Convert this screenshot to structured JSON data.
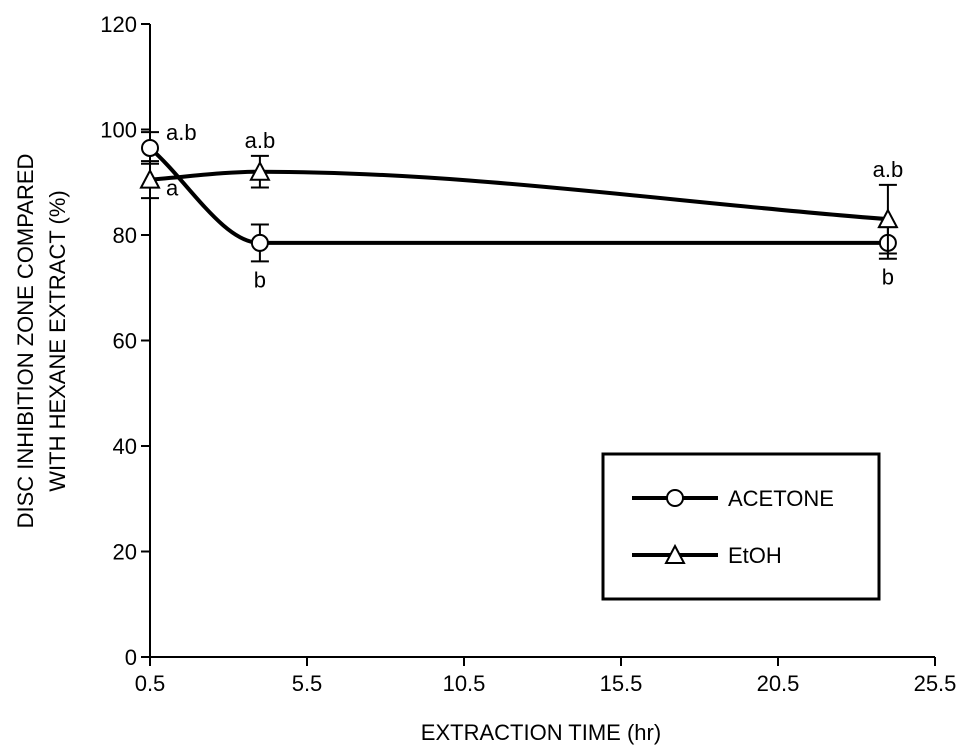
{
  "chart_data": {
    "type": "line",
    "xlabel": "EXTRACTION TIME (hr)",
    "ylabel_lines": [
      "DISC INHIBITION ZONE COMPARED",
      "WITH HEXANE EXTRACT (%)"
    ],
    "xlim": [
      0.5,
      25.5
    ],
    "ylim": [
      0,
      120
    ],
    "xticks": [
      0.5,
      5.5,
      10.5,
      15.5,
      20.5,
      25.5
    ],
    "xtick_labels": [
      "0.5",
      "5.5",
      "10.5",
      "15.5",
      "20.5",
      "25.5"
    ],
    "yticks": [
      0,
      20,
      40,
      60,
      80,
      100,
      120
    ],
    "ytick_labels": [
      "0",
      "20",
      "40",
      "60",
      "80",
      "100",
      "120"
    ],
    "grid": false,
    "legend_position": "bottom-right",
    "series": [
      {
        "name": "ACETONE",
        "marker": "circle",
        "x": [
          0.5,
          4,
          24
        ],
        "y": [
          96.5,
          78.5,
          78.5
        ],
        "err": [
          3,
          3.5,
          3
        ],
        "labels": [
          "a.b",
          "b",
          "b"
        ],
        "label_side": [
          "right",
          "below",
          "below"
        ]
      },
      {
        "name": "EtOH",
        "marker": "triangle",
        "x": [
          0.5,
          4,
          24
        ],
        "y": [
          90.5,
          92,
          83
        ],
        "err": [
          3.5,
          3,
          6.5
        ],
        "labels": [
          "a",
          "a.b",
          "a.b"
        ],
        "label_side": [
          "right",
          "above",
          "above"
        ]
      }
    ]
  }
}
